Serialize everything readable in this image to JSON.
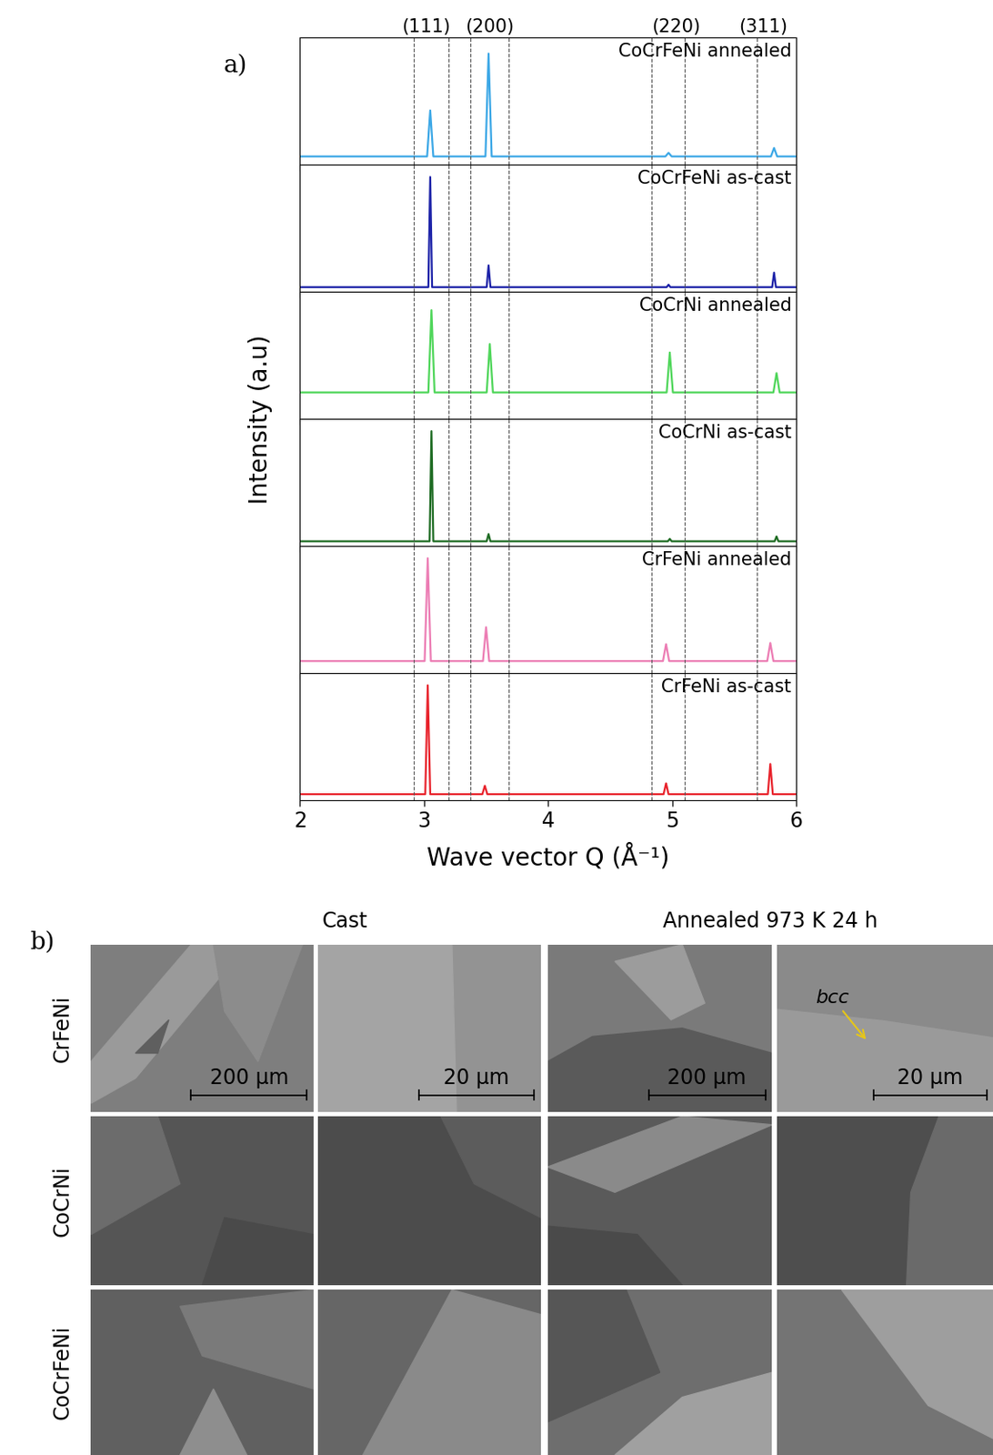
{
  "chart_data": [
    {
      "type": "line",
      "title": "CoCrFeNi annealed",
      "color": "#3ba7e6",
      "x": [
        2.0,
        3.025,
        3.05,
        3.075,
        3.495,
        3.52,
        3.545,
        4.945,
        4.97,
        4.995,
        5.795,
        5.82,
        5.845,
        6.0
      ],
      "values": [
        0.07,
        0.07,
        0.45,
        0.07,
        0.07,
        0.92,
        0.07,
        0.07,
        0.1,
        0.07,
        0.07,
        0.14,
        0.07,
        0.07
      ],
      "xlim": [
        2,
        6
      ],
      "xticks": [
        2,
        3,
        4,
        5,
        6
      ],
      "ylim": [
        0,
        1.05
      ],
      "tick_labels": false
    },
    {
      "type": "line",
      "title": "CoCrFeNi as-cast",
      "color": "#1c22a8",
      "x": [
        2.0,
        3.035,
        3.05,
        3.065,
        3.505,
        3.52,
        3.535,
        4.955,
        4.97,
        4.985,
        5.805,
        5.82,
        5.835,
        6.0
      ],
      "values": [
        0.04,
        0.04,
        0.95,
        0.04,
        0.04,
        0.22,
        0.04,
        0.04,
        0.06,
        0.04,
        0.04,
        0.16,
        0.04,
        0.04
      ],
      "xlim": [
        2,
        6
      ],
      "xticks": [
        2,
        3,
        4,
        5,
        6
      ],
      "ylim": [
        0,
        1.05
      ],
      "tick_labels": false
    },
    {
      "type": "line",
      "title": "CoCrNi annealed",
      "color": "#4fd65a",
      "x": [
        2.0,
        3.035,
        3.06,
        3.085,
        3.505,
        3.53,
        3.555,
        4.955,
        4.98,
        5.005,
        5.815,
        5.84,
        5.865,
        6.0
      ],
      "values": [
        0.22,
        0.22,
        0.9,
        0.22,
        0.22,
        0.62,
        0.22,
        0.22,
        0.55,
        0.22,
        0.22,
        0.38,
        0.22,
        0.22
      ],
      "xlim": [
        2,
        6
      ],
      "xticks": [
        2,
        3,
        4,
        5,
        6
      ],
      "ylim": [
        0,
        1.05
      ],
      "tick_labels": false
    },
    {
      "type": "line",
      "title": "CoCrNi as-cast",
      "color": "#1d6b22",
      "x": [
        2.0,
        3.045,
        3.06,
        3.075,
        3.505,
        3.52,
        3.535,
        4.965,
        4.98,
        4.995,
        5.825,
        5.84,
        5.855,
        6.0
      ],
      "values": [
        0.04,
        0.04,
        0.95,
        0.04,
        0.04,
        0.1,
        0.04,
        0.04,
        0.06,
        0.04,
        0.04,
        0.08,
        0.04,
        0.04
      ],
      "xlim": [
        2,
        6
      ],
      "xticks": [
        2,
        3,
        4,
        5,
        6
      ],
      "ylim": [
        0,
        1.05
      ],
      "tick_labels": false
    },
    {
      "type": "line",
      "title": "CrFeNi annealed",
      "color": "#ec7db4",
      "x": [
        2.0,
        3.005,
        3.03,
        3.055,
        3.475,
        3.5,
        3.525,
        4.925,
        4.95,
        4.975,
        5.765,
        5.79,
        5.815,
        6.0
      ],
      "values": [
        0.1,
        0.1,
        0.95,
        0.1,
        0.1,
        0.38,
        0.1,
        0.1,
        0.24,
        0.1,
        0.1,
        0.25,
        0.1,
        0.1
      ],
      "xlim": [
        2,
        6
      ],
      "xticks": [
        2,
        3,
        4,
        5,
        6
      ],
      "ylim": [
        0,
        1.05
      ],
      "tick_labels": false
    },
    {
      "type": "line",
      "title": "CrFeNi as-cast",
      "color": "#e8222b",
      "x": [
        2.0,
        3.01,
        3.03,
        3.05,
        3.47,
        3.49,
        3.51,
        4.93,
        4.95,
        4.97,
        5.77,
        5.79,
        5.81,
        6.0
      ],
      "values": [
        0.05,
        0.05,
        0.95,
        0.05,
        0.05,
        0.12,
        0.05,
        0.05,
        0.14,
        0.05,
        0.05,
        0.3,
        0.05,
        0.05
      ],
      "xlim": [
        2,
        6
      ],
      "xticks": [
        2,
        3,
        4,
        5,
        6
      ],
      "ylim": [
        0,
        1.05
      ],
      "tick_labels": "x",
      "x_label": "Wave vector Q (Å⁻¹)"
    }
  ],
  "panel_a": {
    "label": "a)",
    "y_label": "Intensity (a.u)",
    "reflections": [
      {
        "text": "(111)",
        "x": 3.02
      },
      {
        "text": "(200)",
        "x": 3.53
      },
      {
        "text": "(220)",
        "x": 5.03
      },
      {
        "text": "(311)",
        "x": 5.73
      }
    ],
    "dashed_lines": [
      2.92,
      3.2,
      3.37,
      3.68,
      4.83,
      5.1,
      5.68
    ]
  },
  "panel_b": {
    "label": "b)",
    "columns": [
      "Cast",
      "Annealed 973 K 24 h"
    ],
    "rows": [
      "CrFeNi",
      "CoCrNi",
      "CoCrFeNi"
    ],
    "scale_bars": [
      "200 µm",
      "20 µm",
      "200 µm",
      "20 µm"
    ],
    "annotation": "bcc"
  }
}
